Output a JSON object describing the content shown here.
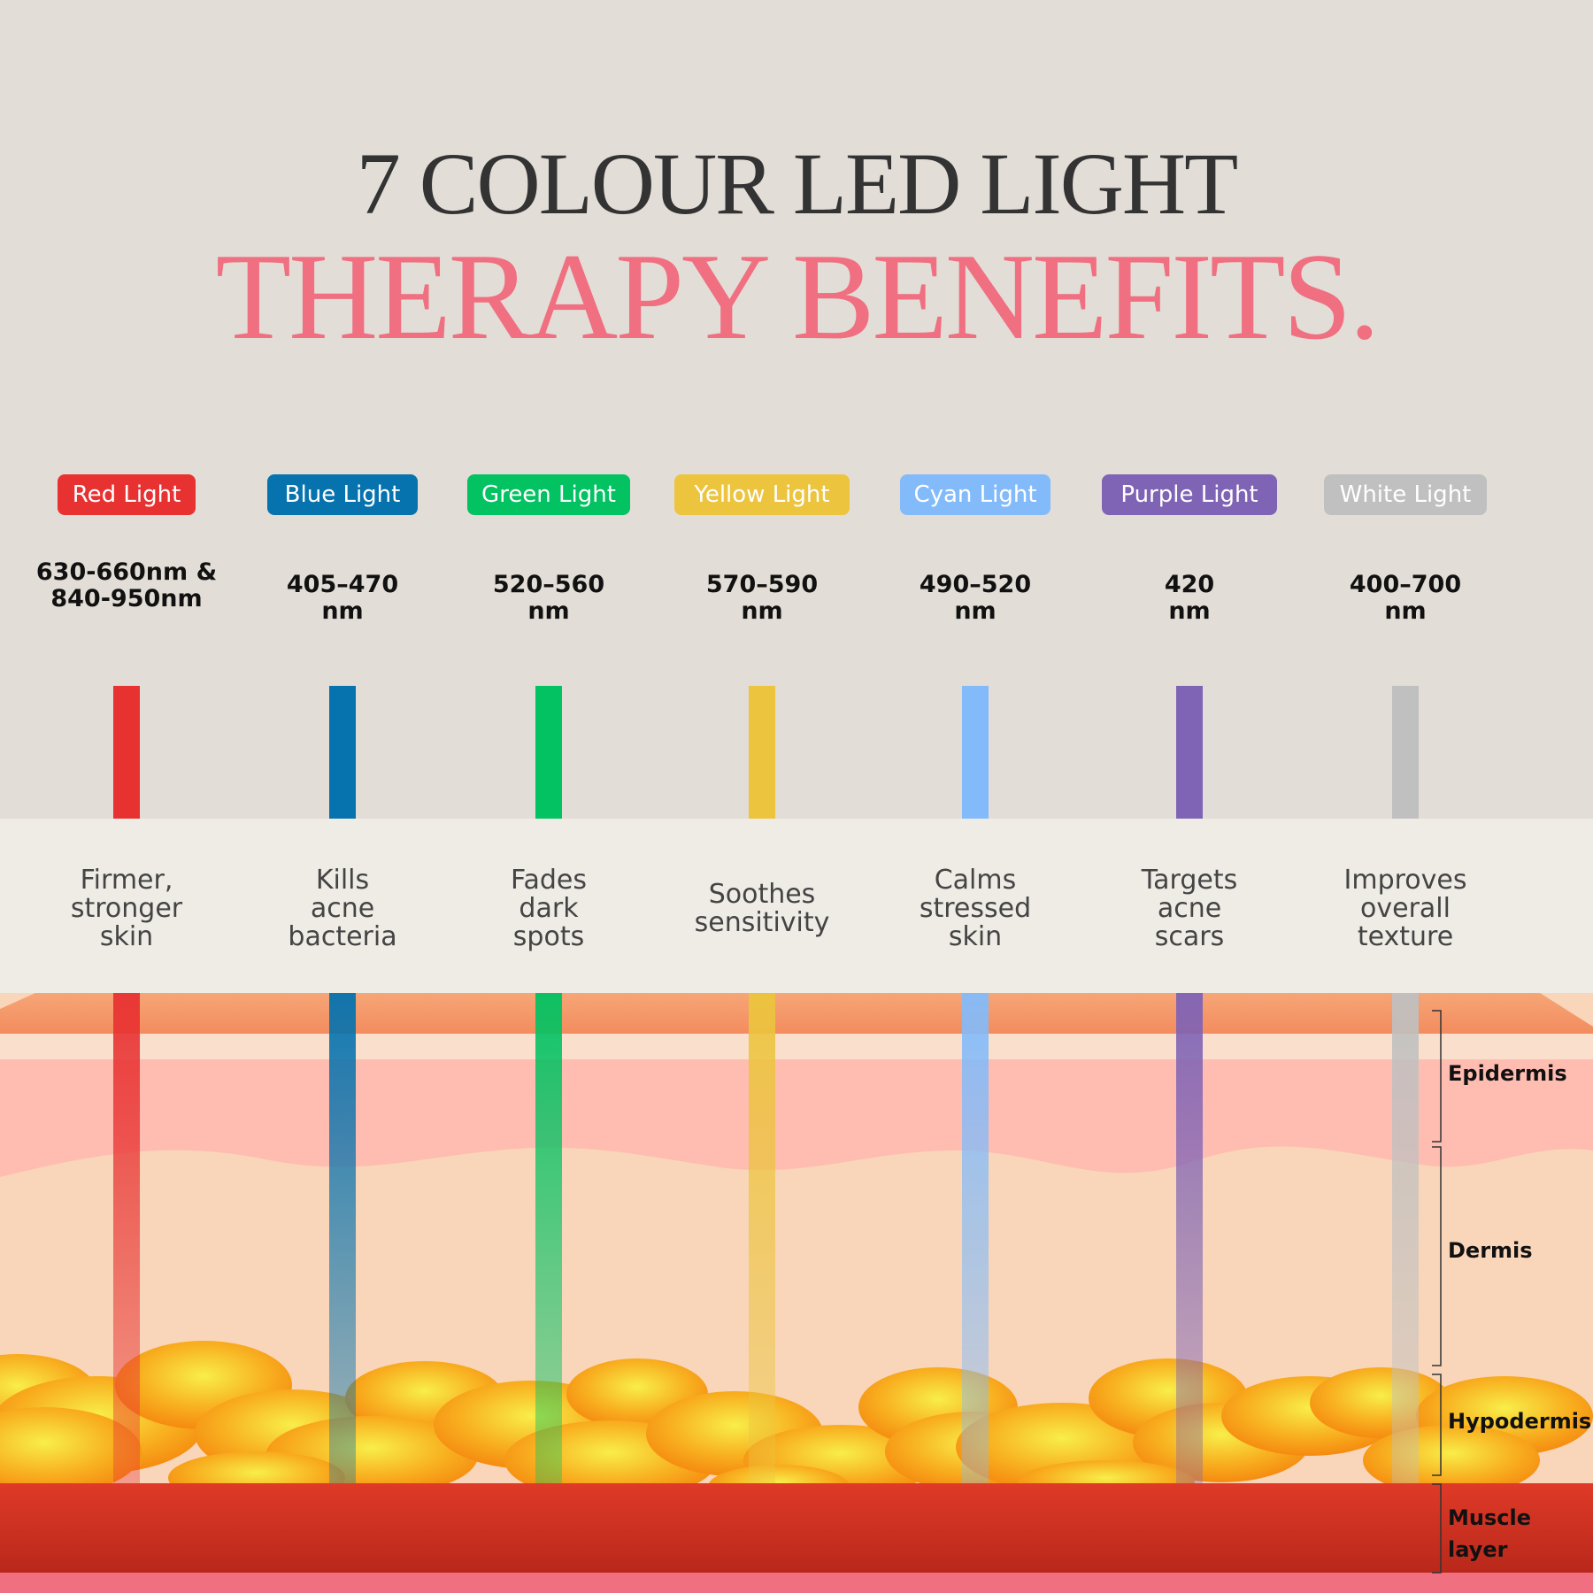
{
  "header": {
    "title_line1": "7 COLOUR LED LIGHT",
    "title_line2": "THERAPY BENEFITS."
  },
  "lights": [
    {
      "label": "Red Light",
      "color": "#e83232",
      "wavelength": "630-660nm  &\n840-950nm",
      "benefit": "Firmer,\nstronger\nskin"
    },
    {
      "label": "Blue Light",
      "color": "#0672ae",
      "wavelength": "405–470\nnm",
      "benefit": "Kills\nacne\nbacteria"
    },
    {
      "label": "Green Light",
      "color": "#02c262",
      "wavelength": "520–560\nnm",
      "benefit": "Fades\ndark\nspots"
    },
    {
      "label": "Yellow Light",
      "color": "#ecc43e",
      "wavelength": "570–590\nnm",
      "benefit": "Soothes\nsensitivity"
    },
    {
      "label": "Cyan Light",
      "color": "#83bbfa",
      "wavelength": "490–520\nnm",
      "benefit": "Calms\nstressed\nskin"
    },
    {
      "label": "Purple Light",
      "color": "#7f63b5",
      "wavelength": "420\nnm",
      "benefit": "Targets\nacne\nscars"
    },
    {
      "label": "White Light",
      "color": "#c0c0c0",
      "wavelength": "400–700\nnm",
      "benefit": "Improves\noverall\ntexture"
    }
  ],
  "layers": [
    "Epidermis",
    "Dermis",
    "Hypodermis",
    "Muscle\nlayer"
  ]
}
